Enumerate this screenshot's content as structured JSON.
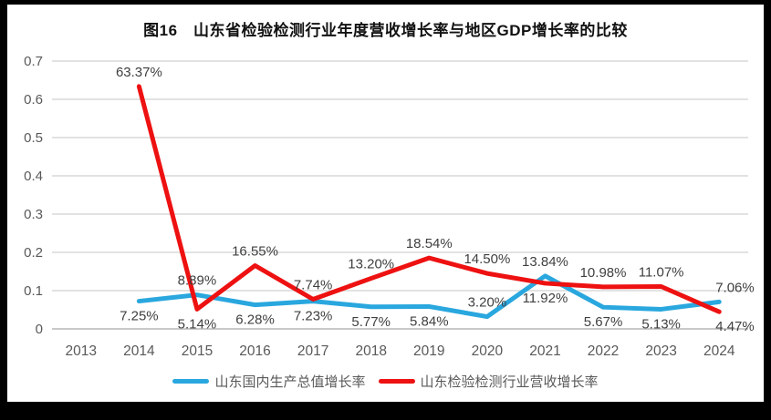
{
  "frame": {
    "background_color": "#000000",
    "card_color": "#ffffff"
  },
  "chart_data": {
    "type": "line",
    "title": "图16　山东省检验检测行业年度营收增长率与地区GDP增长率的比较",
    "categories": [
      "2013",
      "2014",
      "2015",
      "2016",
      "2017",
      "2018",
      "2019",
      "2020",
      "2021",
      "2022",
      "2023",
      "2024"
    ],
    "series": [
      {
        "name": "山东国内生产总值增长率",
        "color": "#29A7DE",
        "values": [
          null,
          7.25,
          8.89,
          6.28,
          7.23,
          5.77,
          5.84,
          3.2,
          13.84,
          5.67,
          5.13,
          7.06
        ],
        "labels": [
          null,
          "7.25%",
          "8.89%",
          "6.28%",
          "7.23%",
          "5.77%",
          "5.84%",
          "3.20%",
          "13.84%",
          "5.67%",
          "5.13%",
          "7.06%"
        ],
        "label_side": [
          null,
          "below",
          "above",
          "below",
          "below",
          "below",
          "below",
          "above",
          "above",
          "below",
          "below",
          "above"
        ]
      },
      {
        "name": "山东检验检测行业营收增长率",
        "color": "#EE1111",
        "values": [
          null,
          63.37,
          5.14,
          16.55,
          7.74,
          13.2,
          18.54,
          14.5,
          11.92,
          10.98,
          11.07,
          4.47
        ],
        "labels": [
          null,
          "63.37%",
          "5.14%",
          "16.55%",
          "7.74%",
          "13.20%",
          "18.54%",
          "14.50%",
          "11.92%",
          "10.98%",
          "11.07%",
          "4.47%"
        ],
        "label_side": [
          null,
          "above",
          "below",
          "above",
          "above",
          "above",
          "above",
          "above",
          "below",
          "above",
          "above",
          "below"
        ]
      }
    ],
    "y_ticks": [
      "0",
      "0.1",
      "0.2",
      "0.3",
      "0.4",
      "0.5",
      "0.6",
      "0.7"
    ],
    "ylim": [
      0,
      0.7
    ],
    "grid": true,
    "legend_position": "bottom",
    "colors": {
      "grid_line": "#E2E2E2",
      "axis_line": "#C9C9C9",
      "tick_label": "#595959",
      "data_label": "#3F3F3F"
    }
  }
}
